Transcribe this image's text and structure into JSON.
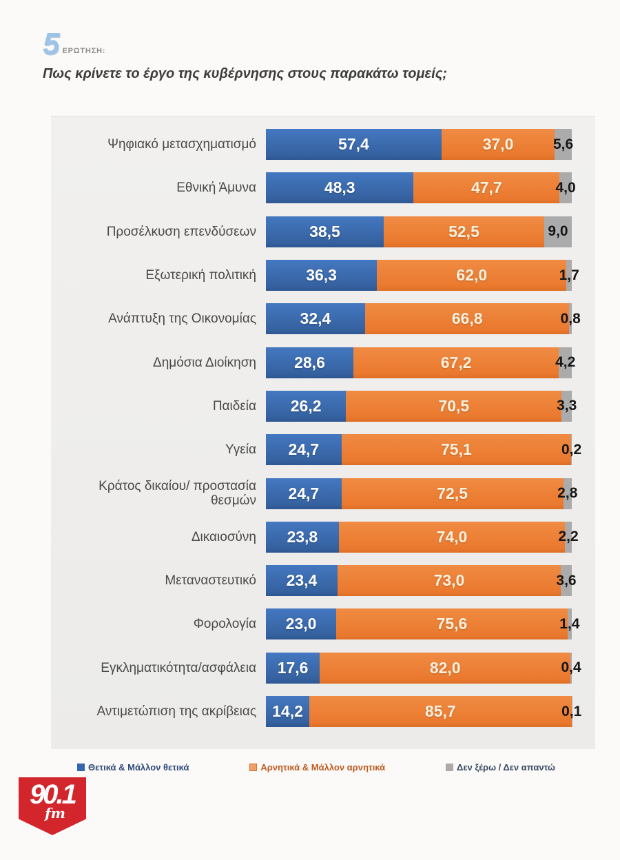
{
  "header": {
    "question_number": "5",
    "question_label": "ΕΡΩΤΗΣΗ:",
    "title": "Πως κρίνετε το έργο της κυβέρνησης στους παρακάτω τομείς;"
  },
  "chart_data": {
    "type": "bar",
    "orientation": "horizontal",
    "stacked": true,
    "grid": false,
    "xlim": [
      0,
      100
    ],
    "legend_position": "bottom",
    "decimal_separator": ",",
    "categories": [
      "Ψηφιακό μετασχηματισμό",
      "Εθνική Άμυνα",
      "Προσέλκυση επενδύσεων",
      "Εξωτερική πολιτική",
      "Ανάπτυξη της Οικονομίας",
      "Δημόσια Διοίκηση",
      "Παιδεία",
      "Υγεία",
      "Κράτος δικαίου/ προστασία θεσμών",
      "Δικαιοσύνη",
      "Μεταναστευτικό",
      "Φορολογία",
      "Εγκληματικότητα/ασφάλεια",
      "Αντιμετώπιση της ακρίβειας"
    ],
    "series": [
      {
        "name": "Θετικά & Μάλλον θετικά",
        "color": "#3565AE",
        "values": [
          57.4,
          48.3,
          38.5,
          36.3,
          32.4,
          28.6,
          26.2,
          24.7,
          24.7,
          23.8,
          23.4,
          23.0,
          17.6,
          14.2
        ]
      },
      {
        "name": "Αρνητικά & Μάλλον αρνητικά",
        "color": "#ED7D31",
        "values": [
          37.0,
          47.7,
          52.5,
          62.0,
          66.8,
          67.2,
          70.5,
          75.1,
          72.5,
          74.0,
          73.0,
          75.6,
          82.0,
          85.7
        ]
      },
      {
        "name": "Δεν ξέρω / Δεν απαντώ",
        "color": "#A8A8A8",
        "values": [
          5.6,
          4.0,
          9.0,
          1.7,
          0.8,
          4.2,
          3.3,
          0.2,
          2.8,
          2.2,
          3.6,
          1.4,
          0.4,
          0.1
        ]
      }
    ],
    "value_labels": [
      [
        "57,4",
        "37,0",
        "5,6"
      ],
      [
        "48,3",
        "47,7",
        "4,0"
      ],
      [
        "38,5",
        "52,5",
        "9,0"
      ],
      [
        "36,3",
        "62,0",
        "1,7"
      ],
      [
        "32,4",
        "66,8",
        "0,8"
      ],
      [
        "28,6",
        "67,2",
        "4,2"
      ],
      [
        "26,2",
        "70,5",
        "3,3"
      ],
      [
        "24,7",
        "75,1",
        "0,2"
      ],
      [
        "24,7",
        "72,5",
        "2,8"
      ],
      [
        "23,8",
        "74,0",
        "2,2"
      ],
      [
        "23,4",
        "73,0",
        "3,6"
      ],
      [
        "23,0",
        "75,6",
        "1,4"
      ],
      [
        "17,6",
        "82,0",
        "0,4"
      ],
      [
        "14,2",
        "85,7",
        "0,1"
      ]
    ]
  },
  "legend": {
    "items": [
      {
        "label": "Θετικά & Μάλλον θετικά",
        "color": "#3565AE",
        "text_color": "#2E4A7A"
      },
      {
        "label": "Αρνητικά & Μάλλον αρνητικά",
        "color": "#ED7D31",
        "text_color": "#C05A1E"
      },
      {
        "label": "Δεν ξέρω / Δεν απαντώ",
        "color": "#A8A8A8",
        "text_color": "#3A4A63"
      }
    ]
  },
  "logo": {
    "station": "90.1",
    "band": "fm"
  }
}
